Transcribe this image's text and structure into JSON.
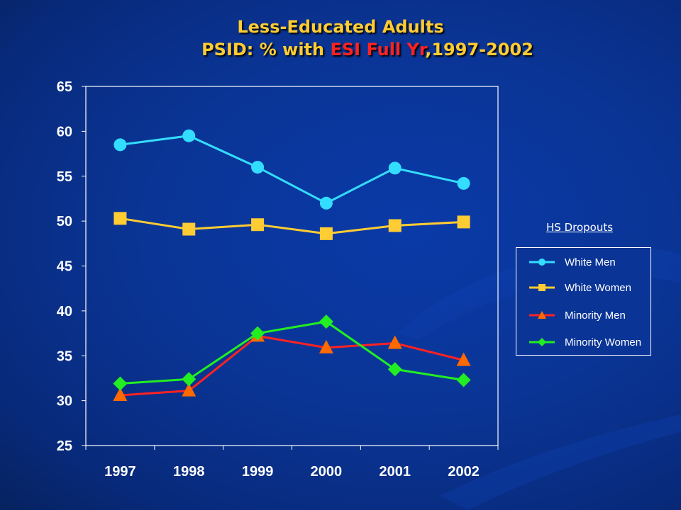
{
  "title": {
    "line1": "Less-Educated Adults",
    "line2_prefix": "PSID: % with ",
    "line2_highlight": "ESI Full Yr",
    "line2_suffix": ",1997-2002"
  },
  "note": "HS Dropouts",
  "chart_data": {
    "type": "line",
    "categories": [
      "1997",
      "1998",
      "1999",
      "2000",
      "2001",
      "2002"
    ],
    "ylim": [
      25,
      65
    ],
    "yticks": [
      25,
      30,
      35,
      40,
      45,
      50,
      55,
      60,
      65
    ],
    "grid": false,
    "legend_placement": "right",
    "series": [
      {
        "name": "White Men",
        "values": [
          58.5,
          59.5,
          56.0,
          52.0,
          55.9,
          54.2
        ],
        "color": "#33ddff",
        "marker": "circle"
      },
      {
        "name": "White Women",
        "values": [
          50.3,
          49.1,
          49.6,
          48.6,
          49.5,
          49.9
        ],
        "color": "#ffcc33",
        "marker": "square"
      },
      {
        "name": "Minority Men",
        "values": [
          30.6,
          31.1,
          37.2,
          35.9,
          36.4,
          34.5
        ],
        "color": "#ff2222",
        "marker": "triangle"
      },
      {
        "name": "Minority Women",
        "values": [
          31.9,
          32.4,
          37.5,
          38.8,
          33.5,
          32.3
        ],
        "color": "#22ee22",
        "marker": "diamond"
      }
    ]
  }
}
